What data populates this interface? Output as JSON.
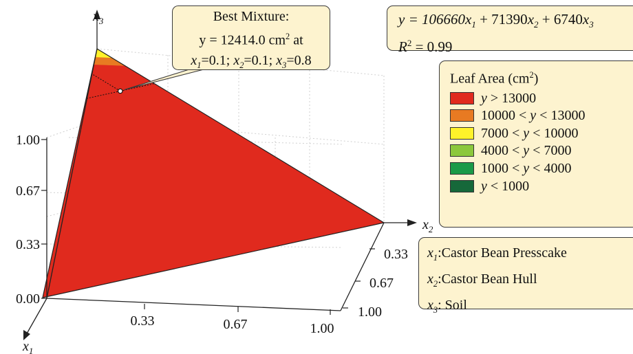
{
  "chart_data": {
    "type": "ternary-contour",
    "axes": {
      "x1": "x1",
      "x2": "x2",
      "x3": "x3"
    },
    "x3_ticks": [
      "0.00",
      "0.33",
      "0.67",
      "1.00"
    ],
    "x1_ticks": [
      "0.33",
      "0.67",
      "1.00"
    ],
    "x2_ticks": [
      "0.33",
      "0.67",
      "1.00"
    ],
    "model": {
      "equation": {
        "prefix": "y = 106660",
        "p2": " + 71390",
        "p3": " + 6740",
        "v1": "x",
        "s1": "1",
        "v2": "x",
        "s2": "2",
        "v3": "x",
        "s3": "3"
      },
      "coefficients": [
        106660,
        71390,
        6740
      ],
      "r2_label": "R",
      "r2_sup": "2",
      "r2_value": " = 0.99"
    },
    "legend": {
      "title": "Leaf Area (cm",
      "title_sup": "2",
      "title_end": ")",
      "entries": [
        {
          "label": "y > 13000",
          "color": "#e02a1e",
          "min": 13000,
          "max": null
        },
        {
          "label": "10000 < y < 13000",
          "color": "#e87a22",
          "min": 10000,
          "max": 13000
        },
        {
          "label": "7000 < y < 10000",
          "color": "#fff22a",
          "min": 7000,
          "max": 10000
        },
        {
          "label": "4000 < y < 7000",
          "color": "#8cc83c",
          "min": 4000,
          "max": 7000
        },
        {
          "label": "1000 < y < 4000",
          "color": "#1a9a48",
          "min": 1000,
          "max": 4000
        },
        {
          "label": "y < 1000",
          "color": "#16683a",
          "min": null,
          "max": 1000
        }
      ]
    },
    "variables": [
      {
        "v": "x",
        "s": "1",
        "name": ":Castor Bean Presscake"
      },
      {
        "v": "x",
        "s": "2",
        "name": ":Castor Bean Hull"
      },
      {
        "v": "x",
        "s": "3",
        "name": ": Soil"
      }
    ],
    "best_mixture": {
      "title": "Best Mixture:",
      "line2": "y = 12414.0 cm",
      "line2_sup": "2",
      "line2_end": " at",
      "point_text": "=0.1; x2=0.1; x3=0.8",
      "y": 12414.0,
      "x1": 0.1,
      "x2": 0.1,
      "x3": 0.8
    },
    "outline_color": "#222222"
  }
}
